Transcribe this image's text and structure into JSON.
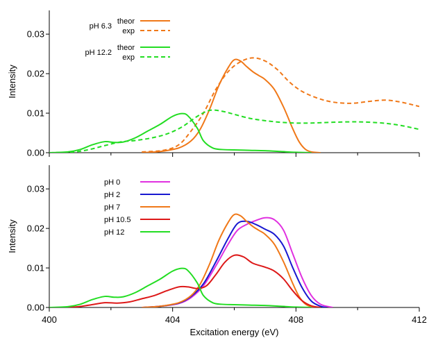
{
  "chart_data": [
    {
      "type": "line",
      "panel": "top",
      "xlim": [
        400,
        412
      ],
      "ylim": [
        0.0,
        0.036
      ],
      "yticks": [
        0.0,
        0.01,
        0.02,
        0.03
      ],
      "ytick_labels": [
        "0.00",
        "0.01",
        "0.02",
        "0.03"
      ],
      "ylabel": "Intensity",
      "grid": false,
      "legend": {
        "placement": "top-left",
        "groups": [
          {
            "label": "pH 6.3",
            "entries": [
              {
                "label": "theor",
                "color": "#f07818",
                "style": "solid"
              },
              {
                "label": "exp",
                "color": "#f07818",
                "style": "dashed"
              }
            ]
          },
          {
            "label": "pH 12.2",
            "entries": [
              {
                "label": "theor",
                "color": "#22dd22",
                "style": "solid"
              },
              {
                "label": "exp",
                "color": "#22dd22",
                "style": "dashed"
              }
            ]
          }
        ]
      },
      "series": [
        {
          "legend_group": "pH 6.3",
          "variant": "theor",
          "color": "#f07818",
          "style": "solid",
          "x": [
            403.0,
            403.6,
            404.2,
            404.6,
            404.9,
            405.2,
            405.5,
            405.8,
            406.0,
            406.2,
            406.4,
            406.6,
            406.8,
            407.0,
            407.3,
            407.6,
            407.9,
            408.1,
            408.3,
            408.5,
            408.8
          ],
          "y": [
            0.0,
            0.0003,
            0.0012,
            0.003,
            0.006,
            0.011,
            0.017,
            0.0215,
            0.0235,
            0.0232,
            0.0218,
            0.0205,
            0.0195,
            0.0185,
            0.016,
            0.0115,
            0.006,
            0.0028,
            0.0009,
            0.0002,
            0.0
          ]
        },
        {
          "legend_group": "pH 6.3",
          "variant": "exp",
          "color": "#f07818",
          "style": "dashed",
          "x": [
            403.0,
            403.7,
            404.2,
            404.6,
            405.0,
            405.4,
            405.8,
            406.2,
            406.6,
            407.0,
            407.4,
            407.8,
            408.2,
            408.7,
            409.2,
            409.8,
            410.4,
            410.9,
            411.4,
            412.0
          ],
          "y": [
            0.0002,
            0.0006,
            0.002,
            0.0055,
            0.01,
            0.016,
            0.0205,
            0.023,
            0.024,
            0.0232,
            0.021,
            0.0178,
            0.0155,
            0.0138,
            0.0128,
            0.0125,
            0.013,
            0.0133,
            0.0128,
            0.0117
          ]
        },
        {
          "legend_group": "pH 12.2",
          "variant": "theor",
          "color": "#22dd22",
          "style": "solid",
          "x": [
            400.0,
            400.6,
            401.0,
            401.4,
            401.8,
            402.1,
            402.4,
            402.8,
            403.2,
            403.6,
            404.0,
            404.3,
            404.5,
            404.8,
            405.0,
            405.3,
            405.6,
            406.0,
            406.5,
            407.0,
            407.5,
            408.0,
            408.5
          ],
          "y": [
            0.0,
            0.0002,
            0.0008,
            0.002,
            0.0028,
            0.0026,
            0.0027,
            0.0038,
            0.0055,
            0.0072,
            0.0092,
            0.0099,
            0.0093,
            0.0062,
            0.003,
            0.0012,
            0.0008,
            0.0007,
            0.0006,
            0.0005,
            0.0003,
            0.0001,
            0.0
          ]
        },
        {
          "legend_group": "pH 12.2",
          "variant": "exp",
          "color": "#22dd22",
          "style": "dashed",
          "x": [
            400.0,
            400.8,
            401.3,
            401.8,
            402.3,
            402.8,
            403.3,
            403.8,
            404.3,
            404.8,
            405.2,
            405.6,
            406.0,
            406.5,
            407.0,
            407.5,
            408.0,
            408.5,
            409.2,
            410.0,
            410.8,
            411.4,
            412.0
          ],
          "y": [
            0.0,
            0.0002,
            0.0008,
            0.0018,
            0.0027,
            0.0031,
            0.0037,
            0.0047,
            0.0065,
            0.0092,
            0.0107,
            0.0105,
            0.0097,
            0.0087,
            0.0081,
            0.0077,
            0.0075,
            0.0075,
            0.0077,
            0.0078,
            0.0075,
            0.0069,
            0.0059
          ]
        }
      ]
    },
    {
      "type": "line",
      "panel": "bottom",
      "xlim": [
        400,
        412
      ],
      "ylim": [
        0.0,
        0.036
      ],
      "xticks": [
        400,
        404,
        408,
        412
      ],
      "xtick_labels": [
        "400",
        "404",
        "408",
        "412"
      ],
      "yticks": [
        0.0,
        0.01,
        0.02,
        0.03
      ],
      "ytick_labels": [
        "0.00",
        "0.01",
        "0.02",
        "0.03"
      ],
      "xlabel": "Excitation energy (eV)",
      "ylabel": "Intensity",
      "grid": false,
      "legend": {
        "placement": "top-left"
      },
      "series": [
        {
          "name": "pH 0",
          "color": "#e030e0",
          "x": [
            403.0,
            403.6,
            404.2,
            404.6,
            405.0,
            405.4,
            405.8,
            406.1,
            406.4,
            406.7,
            407.0,
            407.3,
            407.6,
            407.9,
            408.2,
            408.5,
            408.8,
            409.2
          ],
          "y": [
            0.0,
            0.0003,
            0.001,
            0.0025,
            0.0055,
            0.0105,
            0.016,
            0.0195,
            0.021,
            0.022,
            0.0227,
            0.0222,
            0.0195,
            0.0135,
            0.0075,
            0.003,
            0.0008,
            0.0
          ]
        },
        {
          "name": "pH 2",
          "color": "#1818d0",
          "x": [
            403.0,
            403.6,
            404.2,
            404.6,
            405.0,
            405.4,
            405.8,
            406.1,
            406.4,
            406.7,
            407.0,
            407.3,
            407.6,
            407.9,
            408.2,
            408.5,
            408.8,
            409.0
          ],
          "y": [
            0.0,
            0.0003,
            0.0011,
            0.0028,
            0.006,
            0.0115,
            0.0175,
            0.0212,
            0.0218,
            0.021,
            0.0198,
            0.0185,
            0.0155,
            0.01,
            0.005,
            0.0016,
            0.0003,
            0.0
          ]
        },
        {
          "name": "pH 7",
          "color": "#f07818",
          "x": [
            403.0,
            403.6,
            404.2,
            404.6,
            404.9,
            405.2,
            405.5,
            405.8,
            406.0,
            406.2,
            406.4,
            406.6,
            406.8,
            407.0,
            407.3,
            407.6,
            407.9,
            408.1,
            408.3,
            408.5,
            408.8
          ],
          "y": [
            0.0,
            0.0003,
            0.0012,
            0.003,
            0.006,
            0.011,
            0.017,
            0.0215,
            0.0235,
            0.0232,
            0.0218,
            0.0205,
            0.0195,
            0.0185,
            0.016,
            0.0115,
            0.006,
            0.0028,
            0.0009,
            0.0002,
            0.0
          ]
        },
        {
          "name": "pH 10.5",
          "color": "#dd1818",
          "x": [
            400.0,
            400.8,
            401.3,
            401.8,
            402.2,
            402.6,
            403.0,
            403.4,
            403.8,
            404.2,
            404.5,
            404.8,
            405.1,
            405.4,
            405.7,
            406.0,
            406.3,
            406.6,
            407.0,
            407.3,
            407.6,
            407.9,
            408.2,
            408.5,
            408.8
          ],
          "y": [
            0.0,
            0.0001,
            0.0006,
            0.0012,
            0.0011,
            0.0014,
            0.0022,
            0.003,
            0.0042,
            0.0052,
            0.0052,
            0.0048,
            0.0055,
            0.0083,
            0.0115,
            0.0132,
            0.0128,
            0.0112,
            0.0102,
            0.0092,
            0.0072,
            0.0042,
            0.0017,
            0.0004,
            0.0
          ]
        },
        {
          "name": "pH 12",
          "color": "#22dd22",
          "x": [
            400.0,
            400.6,
            401.0,
            401.4,
            401.8,
            402.1,
            402.4,
            402.8,
            403.2,
            403.6,
            404.0,
            404.3,
            404.5,
            404.8,
            405.0,
            405.3,
            405.6,
            406.0,
            406.5,
            407.0,
            407.5,
            408.0,
            408.5
          ],
          "y": [
            0.0,
            0.0002,
            0.0008,
            0.002,
            0.0028,
            0.0026,
            0.0027,
            0.0038,
            0.0055,
            0.0072,
            0.0092,
            0.0099,
            0.0093,
            0.0062,
            0.003,
            0.0012,
            0.0008,
            0.0007,
            0.0006,
            0.0005,
            0.0003,
            0.0001,
            0.0
          ]
        }
      ]
    }
  ]
}
